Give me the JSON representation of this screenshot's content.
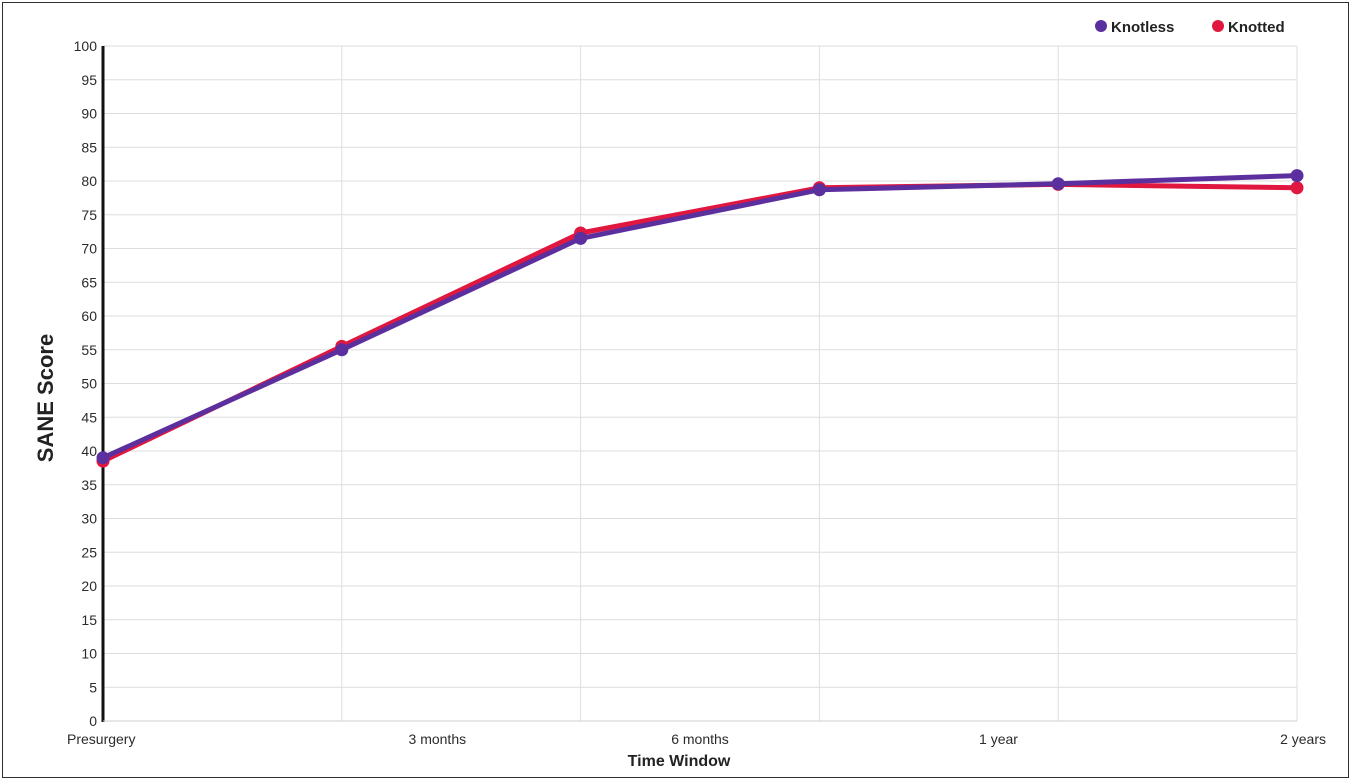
{
  "chart_data": {
    "type": "line",
    "categories": [
      "Presurgery",
      "",
      "3 months",
      "",
      "6 months",
      "",
      "1 year",
      "",
      "2 years"
    ],
    "y_ticks": [
      0,
      5,
      10,
      15,
      20,
      25,
      30,
      35,
      40,
      45,
      50,
      55,
      60,
      65,
      70,
      75,
      80,
      85,
      90,
      95,
      100
    ],
    "xlabel": "Time Window",
    "ylabel": "SANE Score",
    "ylim": [
      0,
      100
    ],
    "grid": true,
    "legend_position": "top-right",
    "series": [
      {
        "name": "Knotted",
        "color": "#e0173f",
        "points": [
          {
            "x": "Presurgery",
            "y": 38.5
          },
          {
            "x": "3 months",
            "y": 55.5
          },
          {
            "x": "6 months",
            "y": 72.3
          },
          {
            "x": "1 year",
            "y": 79.0
          },
          {
            "x": "1 year",
            "y": 79.5
          },
          {
            "x": "2 years",
            "y": 79.0
          }
        ],
        "positions": [
          0,
          1,
          2,
          3,
          4,
          5
        ]
      },
      {
        "name": "Knotless",
        "color": "#5c2f9e",
        "points": [
          {
            "x": "Presurgery",
            "y": 39.0
          },
          {
            "x": "3 months",
            "y": 55.0
          },
          {
            "x": "6 months",
            "y": 71.5
          },
          {
            "x": "1 year",
            "y": 78.7
          },
          {
            "x": "1 year",
            "y": 79.6
          },
          {
            "x": "2 years",
            "y": 80.8
          }
        ],
        "positions": [
          0,
          1,
          2,
          3,
          4,
          5
        ]
      }
    ],
    "x_tick_labels": [
      {
        "label": "Presurgery",
        "pos": 0
      },
      {
        "label": "3 months",
        "pos": 1.4
      },
      {
        "label": "6 months",
        "pos": 2.5
      },
      {
        "label": "1 year",
        "pos": 3.75
      },
      {
        "label": "2 years",
        "pos": 5
      }
    ],
    "legend": [
      {
        "name": "Knotless",
        "color": "#5c2f9e"
      },
      {
        "name": "Knotted",
        "color": "#e0173f"
      }
    ]
  }
}
